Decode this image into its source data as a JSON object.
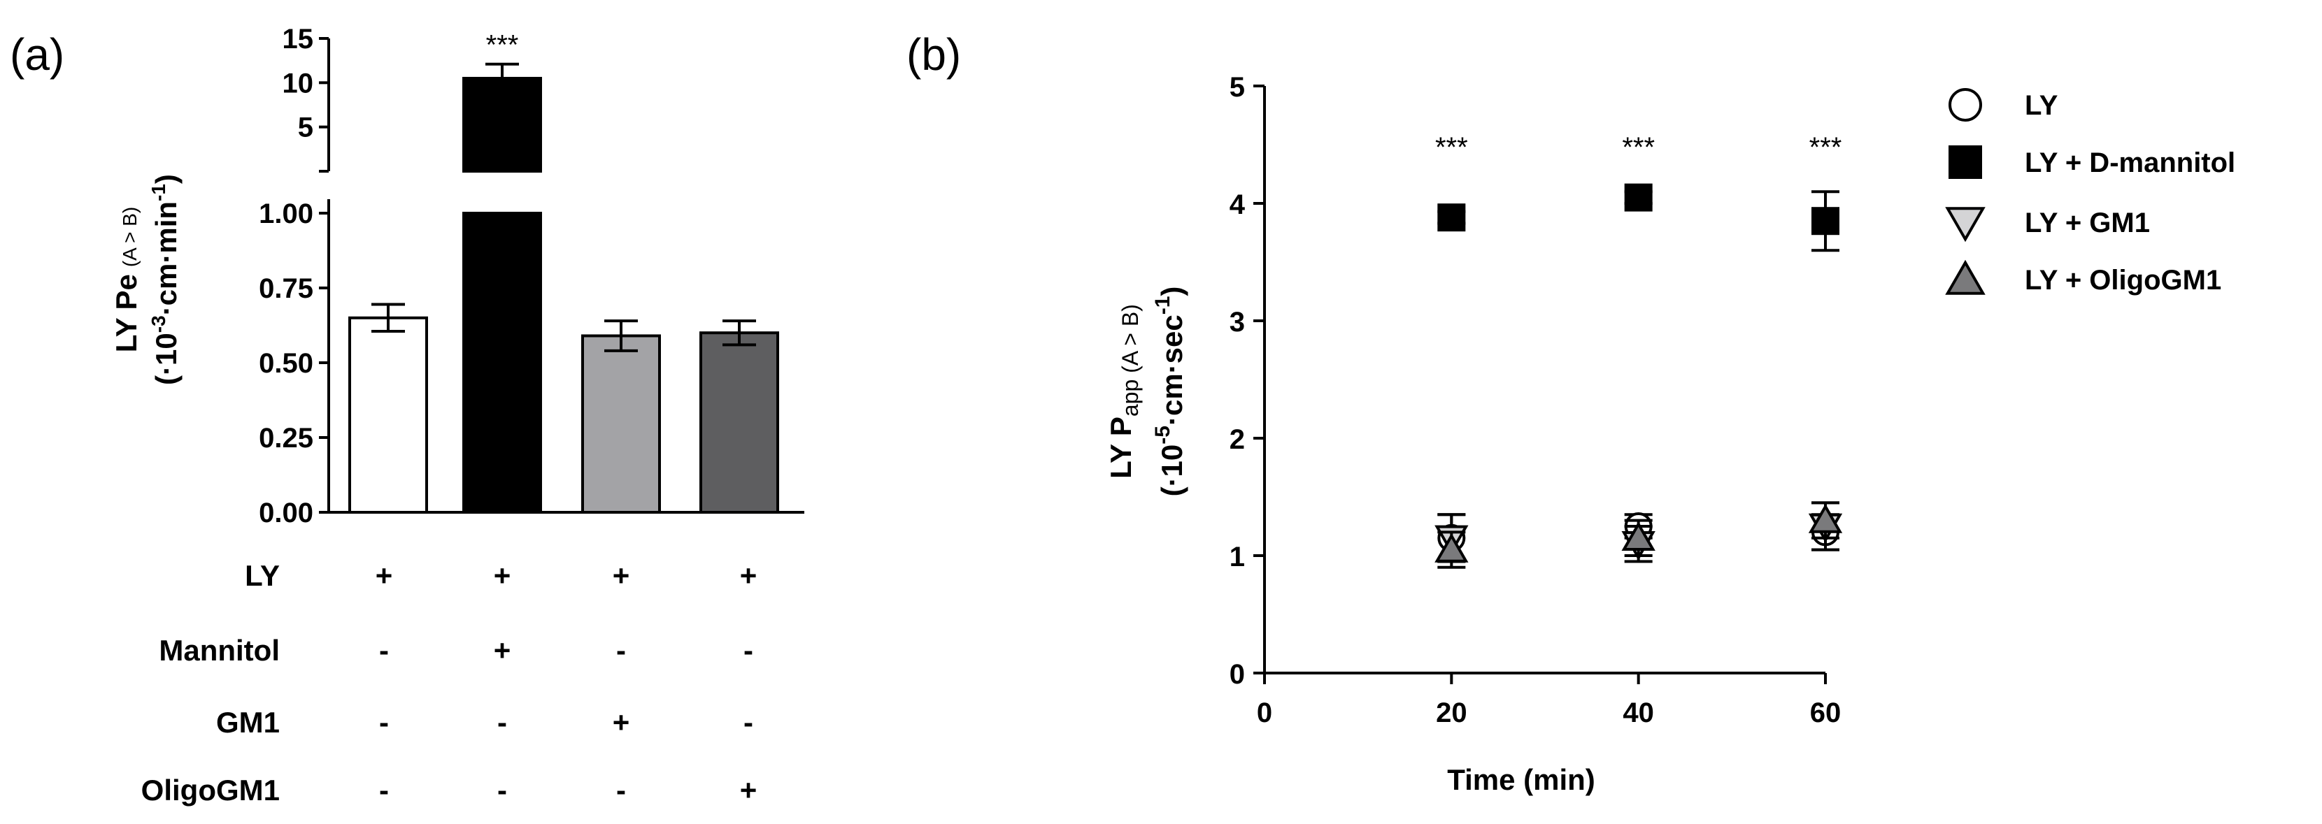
{
  "chart_data": [
    {
      "panel_label": "(a)",
      "type": "bar",
      "categories": [
        "LY",
        "LY + Mannitol",
        "LY + GM1",
        "LY + OligoGM1"
      ],
      "values": [
        0.65,
        10.5,
        0.59,
        0.6
      ],
      "errors": [
        0.045,
        1.6,
        0.05,
        0.04
      ],
      "bar_colors": [
        "#ffffff",
        "#000000",
        "#a3a3a6",
        "#5e5e60"
      ],
      "ylabel_line1": "LY Pe",
      "ylabel_sub": "(A > B)",
      "ylabel_line2": "(·10",
      "ylabel_exp": "-3",
      "ylabel_line2_tail": "·cm·min",
      "ylabel_exp2": "-1",
      "ylabel_close": ")",
      "ylim_lower": [
        0,
        1.0
      ],
      "ylim_upper": [
        0,
        15
      ],
      "yticks_lower": [
        "0.00",
        "0.25",
        "0.50",
        "0.75",
        "1.00"
      ],
      "yticks_upper": [
        "5",
        "10",
        "15"
      ],
      "annotations": [
        {
          "category": "LY + Mannitol",
          "text": "***"
        }
      ],
      "treatment_table": {
        "rows": [
          {
            "label": "LY",
            "marks": [
              "+",
              "+",
              "+",
              "+"
            ]
          },
          {
            "label": "Mannitol",
            "marks": [
              "-",
              "+",
              "-",
              "-"
            ]
          },
          {
            "label": "GM1",
            "marks": [
              "-",
              "-",
              "+",
              "-"
            ]
          },
          {
            "label": "OligoGM1",
            "marks": [
              "-",
              "-",
              "-",
              "+"
            ]
          }
        ]
      }
    },
    {
      "panel_label": "(b)",
      "type": "scatter",
      "xlabel": "Time (min)",
      "ylabel_line1": "LY P",
      "ylabel_sub": "app (A > B)",
      "ylabel_line2": "(·10",
      "ylabel_exp": "-5",
      "ylabel_line2_tail": "·cm·sec",
      "ylabel_exp2": "-1",
      "ylabel_close": ")",
      "xlim": [
        0,
        60
      ],
      "ylim": [
        0,
        5
      ],
      "xticks": [
        0,
        20,
        40,
        60
      ],
      "yticks": [
        0,
        1,
        2,
        3,
        4,
        5
      ],
      "legend_position": "top-right",
      "series": [
        {
          "name": "LY",
          "marker": "circle",
          "color": "#ffffff",
          "x": [
            20,
            40,
            60
          ],
          "y": [
            1.15,
            1.25,
            1.2
          ],
          "err": [
            0.2,
            0.1,
            0.15
          ]
        },
        {
          "name": "LY + D-mannitol",
          "marker": "square",
          "color": "#000000",
          "x": [
            20,
            40,
            60
          ],
          "y": [
            3.88,
            4.05,
            3.85
          ],
          "err": [
            0.05,
            0.05,
            0.25
          ]
        },
        {
          "name": "LY + GM1",
          "marker": "triangle-down",
          "color": "#d4d4d6",
          "x": [
            20,
            40,
            60
          ],
          "y": [
            1.15,
            1.1,
            1.25
          ],
          "err": [
            0.2,
            0.15,
            0.2
          ]
        },
        {
          "name": "LY + OligoGM1",
          "marker": "triangle-up",
          "color": "#7a7a7c",
          "x": [
            20,
            40,
            60
          ],
          "y": [
            1.05,
            1.15,
            1.3
          ],
          "err": [
            0.15,
            0.15,
            0.15
          ]
        }
      ],
      "annotations": [
        {
          "x": 20,
          "text": "***"
        },
        {
          "x": 40,
          "text": "***"
        },
        {
          "x": 60,
          "text": "***"
        }
      ]
    }
  ]
}
